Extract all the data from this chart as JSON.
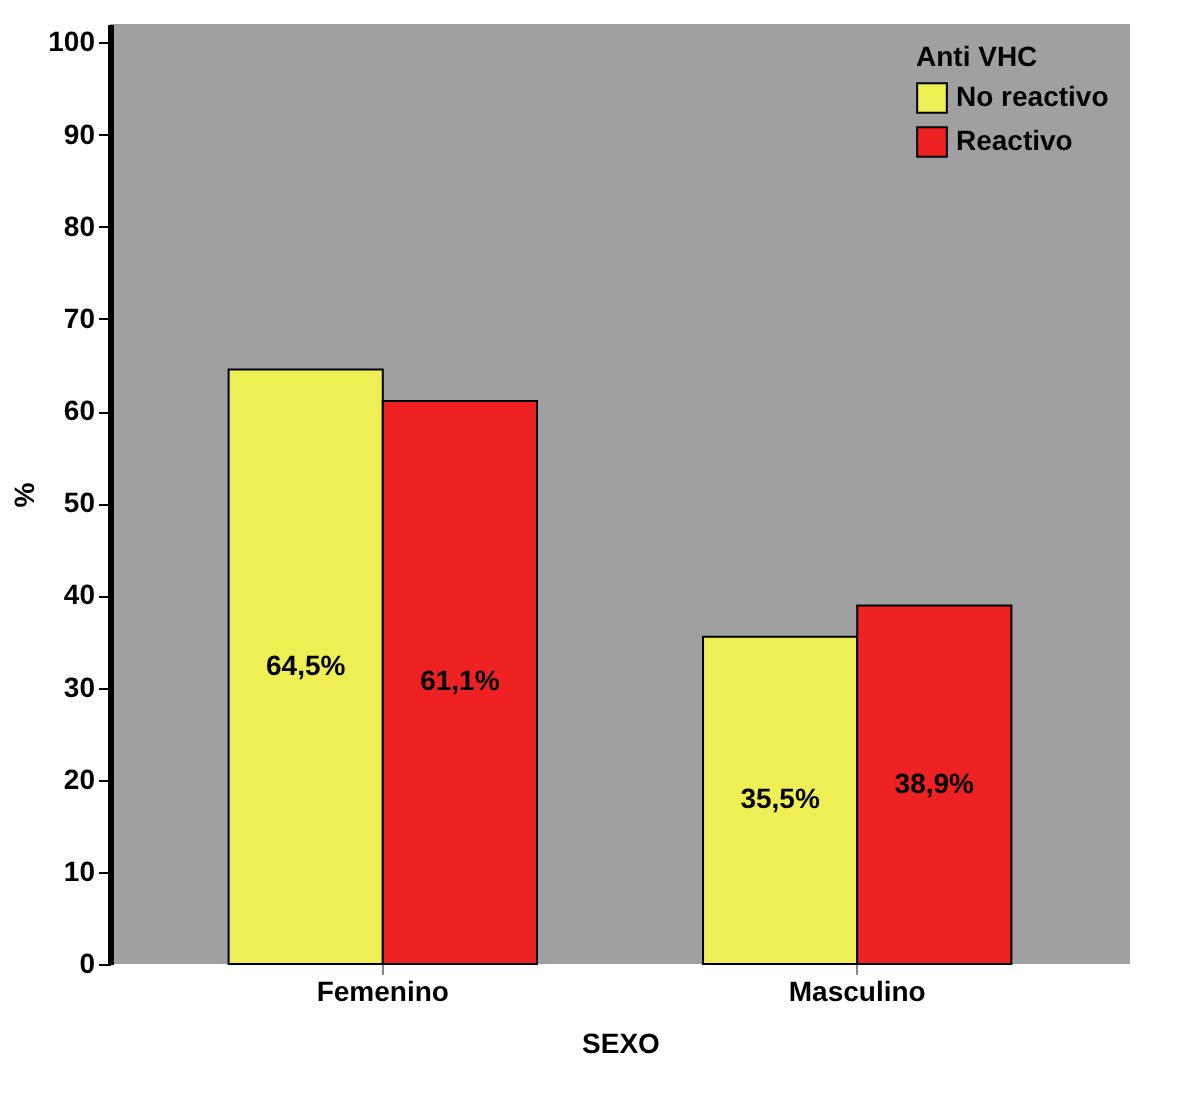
{
  "chart_data": {
    "type": "bar",
    "categories": [
      "Femenino",
      "Masculino"
    ],
    "series": [
      {
        "name": "No reactivo",
        "color": "#eeee55",
        "values": [
          64.5,
          35.5
        ],
        "value_labels": [
          "64,5%",
          "35,5%"
        ]
      },
      {
        "name": "Reactivo",
        "color": "#ee2222",
        "values": [
          61.1,
          38.9
        ],
        "value_labels": [
          "61,1%",
          "38,9%"
        ]
      }
    ],
    "xlabel": "SEXO",
    "ylabel": "%",
    "legend_title": "Anti VHC",
    "legend": "top right",
    "ylim": [
      0,
      102
    ],
    "yticks": [
      0,
      10,
      20,
      30,
      40,
      50,
      60,
      70,
      80,
      90,
      100
    ],
    "grid": false
  }
}
